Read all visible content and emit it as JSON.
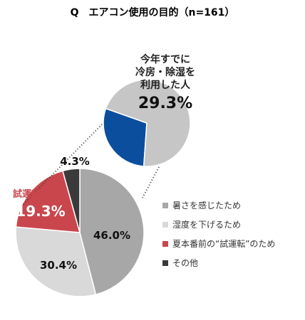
{
  "chart_data": {
    "type": "pie",
    "title": "Q　エアコン使用の目的（n=161）",
    "slices": [
      {
        "label": "暑さを感じたため",
        "value": 46.0,
        "display": "46.0%",
        "color": "#a7a7a7"
      },
      {
        "label": "湿度を下げるため",
        "value": 30.4,
        "display": "30.4%",
        "color": "#d9d9d9"
      },
      {
        "label": "夏本番前の“試運転”のため",
        "value": 19.3,
        "display": "19.3%",
        "color": "#c9464d"
      },
      {
        "label": "その他",
        "value": 4.3,
        "display": "4.3%",
        "color": "#3a3a3a"
      }
    ],
    "callout_pie": {
      "lines": [
        "今年すでに",
        "冷房・除湿を",
        "利用した人"
      ],
      "value": 29.3,
      "display": "29.3%",
      "color_highlight": "#0c4e9e",
      "color_rest": "#c6c6c6"
    },
    "annotation": {
      "text": "試運転のため",
      "value": "19.3%",
      "color": "#c9464d"
    },
    "legend_position": "right"
  }
}
